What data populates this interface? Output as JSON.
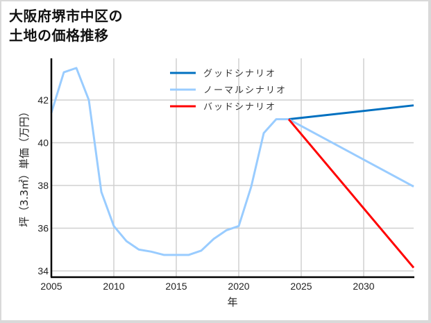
{
  "title_line1": "大阪府堺市中区の",
  "title_line2": "土地の価格推移",
  "chart_data": {
    "type": "line",
    "title": "大阪府堺市中区の土地の価格推移",
    "xlabel": "年",
    "ylabel": "坪（3.3㎡）単価（万円）",
    "xlim": [
      2005,
      2034
    ],
    "ylim": [
      33.8,
      44.3
    ],
    "xticks": [
      2005,
      2010,
      2015,
      2020,
      2025,
      2030
    ],
    "yticks": [
      34,
      36,
      38,
      40,
      42
    ],
    "grid": true,
    "legend_position": "upper center",
    "series": [
      {
        "name": "ノーマルシナリオ (historical)",
        "color": "#99ccff",
        "x": [
          2005,
          2006,
          2007,
          2008,
          2009,
          2010,
          2011,
          2012,
          2013,
          2014,
          2015,
          2016,
          2017,
          2018,
          2019,
          2020,
          2021,
          2022,
          2023,
          2024
        ],
        "y": [
          41.4,
          43.3,
          43.5,
          42.0,
          37.7,
          36.1,
          35.4,
          35.0,
          34.9,
          34.75,
          34.75,
          34.75,
          34.95,
          35.5,
          35.9,
          36.1,
          37.95,
          40.45,
          41.1,
          41.1
        ]
      },
      {
        "name": "グッドシナリオ",
        "color": "#0070c0",
        "x": [
          2024,
          2034
        ],
        "y": [
          41.1,
          41.75
        ]
      },
      {
        "name": "ノーマルシナリオ",
        "color": "#99ccff",
        "x": [
          2024,
          2034
        ],
        "y": [
          41.1,
          37.95
        ]
      },
      {
        "name": "バッドシナリオ",
        "color": "#ff0000",
        "x": [
          2024,
          2034
        ],
        "y": [
          41.1,
          34.15
        ]
      }
    ]
  },
  "legend": [
    {
      "label": "グッドシナリオ",
      "color": "#0070c0"
    },
    {
      "label": "ノーマルシナリオ",
      "color": "#99ccff"
    },
    {
      "label": "バッドシナリオ",
      "color": "#ff0000"
    }
  ],
  "x_tick_labels": [
    "2005",
    "2010",
    "2015",
    "2020",
    "2025",
    "2030"
  ],
  "y_tick_labels": [
    "34",
    "36",
    "38",
    "40",
    "42"
  ],
  "x_axis_label": "年",
  "y_axis_label": "坪（3.3㎡）単価（万円）"
}
